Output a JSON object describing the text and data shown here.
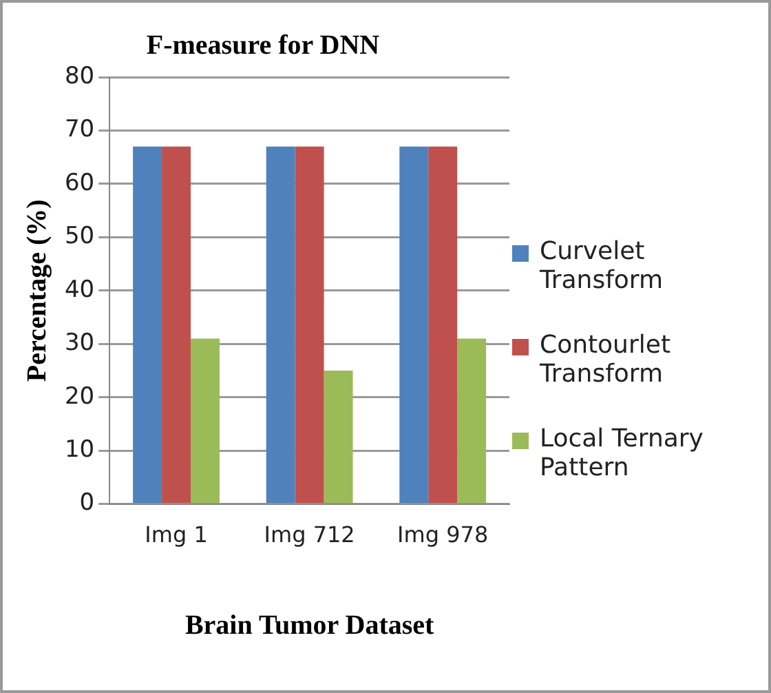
{
  "chart_data": {
    "type": "bar",
    "title": "F-measure for DNN",
    "xlabel": "Brain Tumor Dataset",
    "ylabel": "Percentage (%)",
    "categories": [
      "Img 1",
      "Img 712",
      "Img 978"
    ],
    "series": [
      {
        "name": "Curvelet Transform",
        "color": "#4f81bd",
        "values": [
          67,
          67,
          67
        ]
      },
      {
        "name": "Contourlet Transform",
        "color": "#c0504d",
        "values": [
          67,
          67,
          67
        ]
      },
      {
        "name": "Local Ternary Pattern",
        "color": "#9bbb59",
        "values": [
          31,
          25,
          31
        ]
      }
    ],
    "ylim": [
      0,
      80
    ],
    "yticks": [
      0,
      10,
      20,
      30,
      40,
      50,
      60,
      70,
      80
    ],
    "grid": "y",
    "legend": "right"
  }
}
